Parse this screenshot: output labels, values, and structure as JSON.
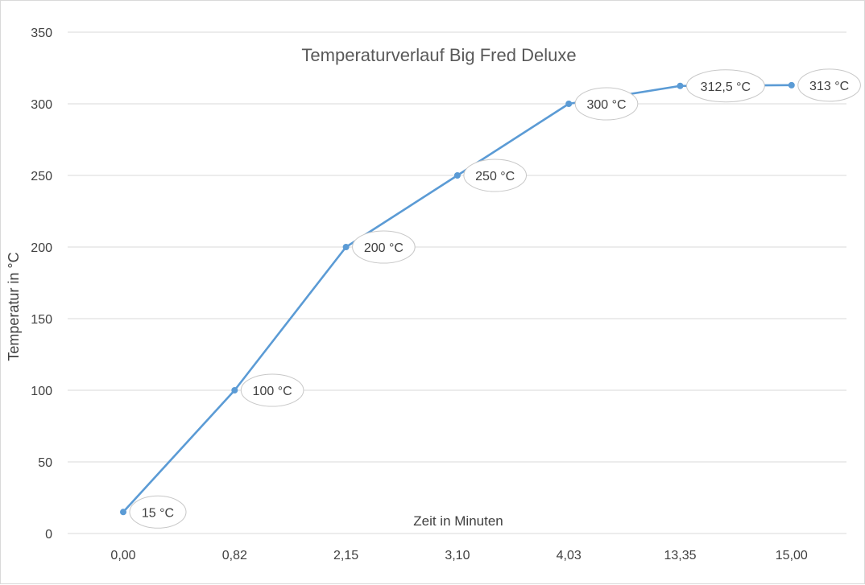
{
  "chart_data": {
    "type": "line",
    "title": "Temperaturverlauf Big Fred Deluxe",
    "xlabel": "Zeit in Minuten",
    "ylabel": "Temperatur in °C",
    "categories": [
      "0,00",
      "0,82",
      "2,15",
      "3,10",
      "4,03",
      "13,35",
      "15,00"
    ],
    "series": [
      {
        "values": [
          15,
          100,
          200,
          250,
          300,
          312.5,
          313
        ],
        "labels": [
          "15 °C",
          "100 °C",
          "200 °C",
          "250 °C",
          "300 °C",
          "312,5 °C",
          "313 °C"
        ],
        "color": "#5b9bd5"
      }
    ],
    "ylim": [
      0,
      350
    ],
    "yticks": [
      0,
      50,
      100,
      150,
      200,
      250,
      300,
      350
    ],
    "grid": true,
    "legend": "none"
  }
}
